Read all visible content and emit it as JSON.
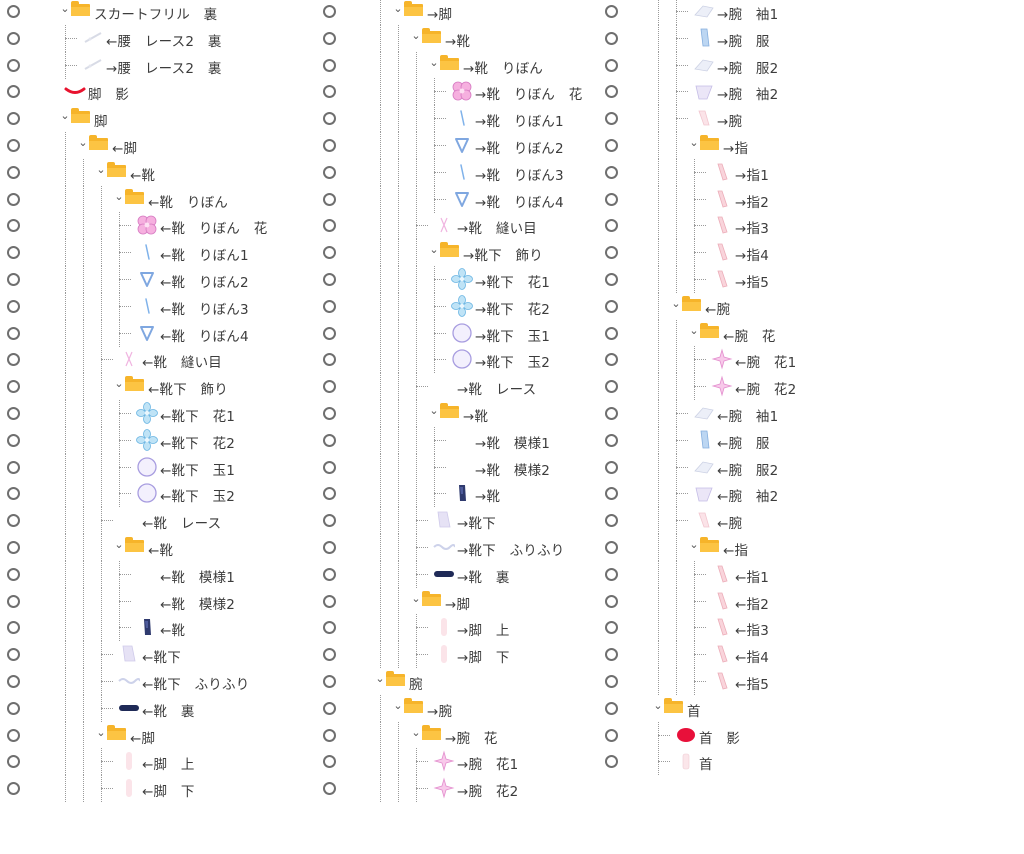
{
  "columns": [
    {
      "rows": [
        {
          "label": "スカートフリル　裏",
          "depth": 0,
          "folder": true,
          "icon": "folder-icon"
        },
        {
          "label": "←腰　レース2　裏",
          "depth": 1,
          "folder": false,
          "icon": "lace-thumb"
        },
        {
          "label": "→腰　レース2　裏",
          "depth": 1,
          "folder": false,
          "icon": "lace-thumb"
        },
        {
          "label": "脚　影",
          "depth": 0,
          "folder": false,
          "icon": "red-arc-thumb"
        },
        {
          "label": "脚",
          "depth": 0,
          "folder": true,
          "icon": "folder-icon"
        },
        {
          "label": "←脚",
          "depth": 1,
          "folder": true,
          "icon": "folder-icon"
        },
        {
          "label": "←靴",
          "depth": 2,
          "folder": true,
          "icon": "folder-icon"
        },
        {
          "label": "←靴　りぼん",
          "depth": 3,
          "folder": true,
          "icon": "folder-icon"
        },
        {
          "label": "←靴　りぼん　花",
          "depth": 4,
          "folder": false,
          "icon": "pink-flower-thumb"
        },
        {
          "label": "←靴　りぼん1",
          "depth": 4,
          "folder": false,
          "icon": "blue-line-thumb"
        },
        {
          "label": "←靴　りぼん2",
          "depth": 4,
          "folder": false,
          "icon": "blue-ribbon-thumb"
        },
        {
          "label": "←靴　りぼん3",
          "depth": 4,
          "folder": false,
          "icon": "blue-line-thumb"
        },
        {
          "label": "←靴　りぼん4",
          "depth": 4,
          "folder": false,
          "icon": "blue-ribbon-thumb"
        },
        {
          "label": "←靴　縫い目",
          "depth": 3,
          "folder": false,
          "icon": "stitch-thumb"
        },
        {
          "label": "←靴下　飾り",
          "depth": 3,
          "folder": true,
          "icon": "folder-icon"
        },
        {
          "label": "←靴下　花1",
          "depth": 4,
          "folder": false,
          "icon": "blue-flower-thumb"
        },
        {
          "label": "←靴下　花2",
          "depth": 4,
          "folder": false,
          "icon": "blue-flower-thumb"
        },
        {
          "label": "←靴下　玉1",
          "depth": 4,
          "folder": false,
          "icon": "circle-thumb"
        },
        {
          "label": "←靴下　玉2",
          "depth": 4,
          "folder": false,
          "icon": "circle-thumb"
        },
        {
          "label": "←靴　レース",
          "depth": 3,
          "folder": false,
          "icon": "empty-thumb"
        },
        {
          "label": "←靴",
          "depth": 3,
          "folder": true,
          "icon": "folder-icon"
        },
        {
          "label": "←靴　模様1",
          "depth": 4,
          "folder": false,
          "icon": "empty-thumb"
        },
        {
          "label": "←靴　模様2",
          "depth": 4,
          "folder": false,
          "icon": "empty-thumb"
        },
        {
          "label": "←靴",
          "depth": 4,
          "folder": false,
          "icon": "navy-shoe-thumb"
        },
        {
          "label": "←靴下",
          "depth": 3,
          "folder": false,
          "icon": "sock-thumb"
        },
        {
          "label": "←靴下　ふりふり",
          "depth": 3,
          "folder": false,
          "icon": "frill-thumb"
        },
        {
          "label": "←靴　裏",
          "depth": 3,
          "folder": false,
          "icon": "navy-sole-thumb"
        },
        {
          "label": "←脚",
          "depth": 2,
          "folder": true,
          "icon": "folder-icon"
        },
        {
          "label": "←脚　上",
          "depth": 3,
          "folder": false,
          "icon": "leg-thumb"
        },
        {
          "label": "←脚　下",
          "depth": 3,
          "folder": false,
          "icon": "leg-thumb"
        }
      ]
    },
    {
      "rows": [
        {
          "label": "→脚",
          "depth": 1,
          "folder": true,
          "icon": "folder-icon"
        },
        {
          "label": "→靴",
          "depth": 2,
          "folder": true,
          "icon": "folder-icon"
        },
        {
          "label": "→靴　りぼん",
          "depth": 3,
          "folder": true,
          "icon": "folder-icon"
        },
        {
          "label": "→靴　りぼん　花",
          "depth": 4,
          "folder": false,
          "icon": "pink-flower-thumb"
        },
        {
          "label": "→靴　りぼん1",
          "depth": 4,
          "folder": false,
          "icon": "blue-line-thumb"
        },
        {
          "label": "→靴　りぼん2",
          "depth": 4,
          "folder": false,
          "icon": "blue-ribbon-thumb"
        },
        {
          "label": "→靴　りぼん3",
          "depth": 4,
          "folder": false,
          "icon": "blue-line-thumb"
        },
        {
          "label": "→靴　りぼん4",
          "depth": 4,
          "folder": false,
          "icon": "blue-ribbon-thumb"
        },
        {
          "label": "→靴　縫い目",
          "depth": 3,
          "folder": false,
          "icon": "stitch-thumb"
        },
        {
          "label": "→靴下　飾り",
          "depth": 3,
          "folder": true,
          "icon": "folder-icon"
        },
        {
          "label": "→靴下　花1",
          "depth": 4,
          "folder": false,
          "icon": "blue-flower-thumb"
        },
        {
          "label": "→靴下　花2",
          "depth": 4,
          "folder": false,
          "icon": "blue-flower-thumb"
        },
        {
          "label": "→靴下　玉1",
          "depth": 4,
          "folder": false,
          "icon": "circle-thumb"
        },
        {
          "label": "→靴下　玉2",
          "depth": 4,
          "folder": false,
          "icon": "circle-thumb"
        },
        {
          "label": "→靴　レース",
          "depth": 3,
          "folder": false,
          "icon": "empty-thumb"
        },
        {
          "label": "→靴",
          "depth": 3,
          "folder": true,
          "icon": "folder-icon"
        },
        {
          "label": "→靴　模様1",
          "depth": 4,
          "folder": false,
          "icon": "empty-thumb"
        },
        {
          "label": "→靴　模様2",
          "depth": 4,
          "folder": false,
          "icon": "empty-thumb"
        },
        {
          "label": "→靴",
          "depth": 4,
          "folder": false,
          "icon": "navy-shoe-thumb"
        },
        {
          "label": "→靴下",
          "depth": 3,
          "folder": false,
          "icon": "sock-thumb"
        },
        {
          "label": "→靴下　ふりふり",
          "depth": 3,
          "folder": false,
          "icon": "frill-thumb"
        },
        {
          "label": "→靴　裏",
          "depth": 3,
          "folder": false,
          "icon": "navy-sole-thumb"
        },
        {
          "label": "→脚",
          "depth": 2,
          "folder": true,
          "icon": "folder-icon"
        },
        {
          "label": "→脚　上",
          "depth": 3,
          "folder": false,
          "icon": "leg-thumb"
        },
        {
          "label": "→脚　下",
          "depth": 3,
          "folder": false,
          "icon": "leg-thumb"
        },
        {
          "label": "腕",
          "depth": 0,
          "folder": true,
          "icon": "folder-icon"
        },
        {
          "label": "→腕",
          "depth": 1,
          "folder": true,
          "icon": "folder-icon"
        },
        {
          "label": "→腕　花",
          "depth": 2,
          "folder": true,
          "icon": "folder-icon"
        },
        {
          "label": "→腕　花1",
          "depth": 3,
          "folder": false,
          "icon": "pink-star-thumb"
        },
        {
          "label": "→腕　花2",
          "depth": 3,
          "folder": false,
          "icon": "pink-star-thumb"
        }
      ]
    },
    {
      "rows": [
        {
          "label": "→腕　袖1",
          "depth": 2,
          "folder": false,
          "icon": "sleeve-thumb"
        },
        {
          "label": "→腕　服",
          "depth": 2,
          "folder": false,
          "icon": "blue-arm-thumb"
        },
        {
          "label": "→腕　服2",
          "depth": 2,
          "folder": false,
          "icon": "sleeve-thumb"
        },
        {
          "label": "→腕　袖2",
          "depth": 2,
          "folder": false,
          "icon": "sleeve2-thumb"
        },
        {
          "label": "→腕",
          "depth": 2,
          "folder": false,
          "icon": "arm-thumb"
        },
        {
          "label": "→指",
          "depth": 2,
          "folder": true,
          "icon": "folder-icon"
        },
        {
          "label": "→指1",
          "depth": 3,
          "folder": false,
          "icon": "finger-thumb"
        },
        {
          "label": "→指2",
          "depth": 3,
          "folder": false,
          "icon": "finger-thumb"
        },
        {
          "label": "→指3",
          "depth": 3,
          "folder": false,
          "icon": "finger-thumb"
        },
        {
          "label": "→指4",
          "depth": 3,
          "folder": false,
          "icon": "finger-thumb"
        },
        {
          "label": "→指5",
          "depth": 3,
          "folder": false,
          "icon": "finger-thumb"
        },
        {
          "label": "←腕",
          "depth": 1,
          "folder": true,
          "icon": "folder-icon"
        },
        {
          "label": "←腕　花",
          "depth": 2,
          "folder": true,
          "icon": "folder-icon"
        },
        {
          "label": "←腕　花1",
          "depth": 3,
          "folder": false,
          "icon": "pink-star-thumb"
        },
        {
          "label": "←腕　花2",
          "depth": 3,
          "folder": false,
          "icon": "pink-star-thumb"
        },
        {
          "label": "←腕　袖1",
          "depth": 2,
          "folder": false,
          "icon": "sleeve-thumb"
        },
        {
          "label": "←腕　服",
          "depth": 2,
          "folder": false,
          "icon": "blue-arm-thumb"
        },
        {
          "label": "←腕　服2",
          "depth": 2,
          "folder": false,
          "icon": "sleeve-thumb"
        },
        {
          "label": "←腕　袖2",
          "depth": 2,
          "folder": false,
          "icon": "sleeve2-thumb"
        },
        {
          "label": "←腕",
          "depth": 2,
          "folder": false,
          "icon": "arm-thumb"
        },
        {
          "label": "←指",
          "depth": 2,
          "folder": true,
          "icon": "folder-icon"
        },
        {
          "label": "←指1",
          "depth": 3,
          "folder": false,
          "icon": "finger-thumb"
        },
        {
          "label": "←指2",
          "depth": 3,
          "folder": false,
          "icon": "finger-thumb"
        },
        {
          "label": "←指3",
          "depth": 3,
          "folder": false,
          "icon": "finger-thumb"
        },
        {
          "label": "←指4",
          "depth": 3,
          "folder": false,
          "icon": "finger-thumb"
        },
        {
          "label": "←指5",
          "depth": 3,
          "folder": false,
          "icon": "finger-thumb"
        },
        {
          "label": "首",
          "depth": 0,
          "folder": true,
          "icon": "folder-icon"
        },
        {
          "label": "首　影",
          "depth": 1,
          "folder": false,
          "icon": "red-blob-thumb"
        },
        {
          "label": "首",
          "depth": 1,
          "folder": false,
          "icon": "neck-thumb"
        }
      ]
    }
  ],
  "colors": {
    "folder": "#f6b42a",
    "text": "#3c3c3c",
    "radio_border": "#6f6f6f",
    "tree_line": "#9a9a9a"
  }
}
